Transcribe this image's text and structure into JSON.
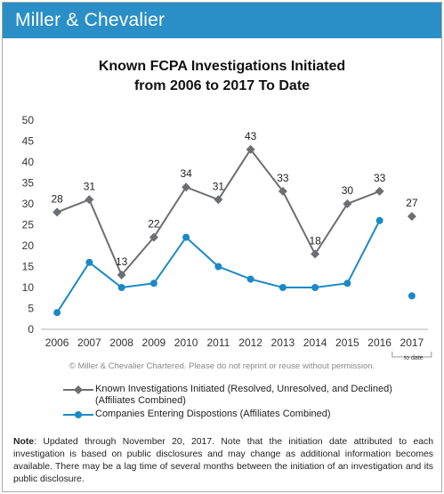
{
  "brand": "Miller & Chevalier",
  "title_line1": "Known FCPA Investigations Initiated",
  "title_line2": "from 2006 to 2017 To Date",
  "copyright": "© Miller & Chevalier Chartered. Please do not reprint or reuse without permission.",
  "legend": {
    "series1_line1": "Known Investigations Initiated (Resolved, Unresolved, and Declined)",
    "series1_line2": "(Affiliates Combined)",
    "series2": "Companies Entering Dispostions (Affiliates Combined)"
  },
  "note": {
    "label": "Note",
    "text": ": Updated through November 20, 2017. Note that the initiation date attributed to each investigation is based on public disclosures and may change as additional information becomes available. There may be a lag time of several months between the initiation of an investigation and its public disclosure."
  },
  "to_date_label": "to date",
  "colors": {
    "banner": "#2a8fc7",
    "series1": "#6d6e71",
    "series2": "#1a8ac6"
  },
  "chart_data": {
    "type": "line",
    "categories": [
      "2006",
      "2007",
      "2008",
      "2009",
      "2010",
      "2011",
      "2012",
      "2013",
      "2014",
      "2015",
      "2016",
      "2017"
    ],
    "yticks": [
      0,
      5,
      10,
      15,
      20,
      25,
      30,
      35,
      40,
      45,
      50
    ],
    "ylim": [
      0,
      50
    ],
    "grid": false,
    "legend_position": "bottom",
    "series": [
      {
        "name": "Known Investigations Initiated (Resolved, Unresolved, and Declined) (Affiliates Combined)",
        "marker": "diamond",
        "labels": true,
        "break_before_last": true,
        "values": [
          28,
          31,
          13,
          22,
          34,
          31,
          43,
          33,
          18,
          30,
          33,
          27
        ]
      },
      {
        "name": "Companies Entering Dispostions (Affiliates Combined)",
        "marker": "circle",
        "labels": false,
        "break_before_last": true,
        "values": [
          4,
          16,
          10,
          11,
          22,
          15,
          12,
          10,
          10,
          11,
          26,
          8
        ]
      }
    ]
  }
}
